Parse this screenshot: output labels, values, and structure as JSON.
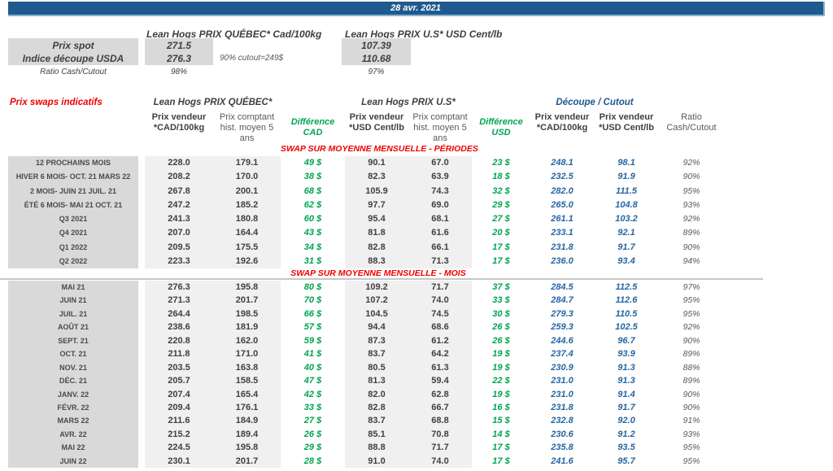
{
  "title_bar": {
    "date": "28 avr. 2021"
  },
  "colors": {
    "header_bar_blue": "#1e5a8d",
    "section_red": "#ee0000",
    "difference_green": "#00a550",
    "cutout_blue": "#2566a2",
    "label_gray_bg": "#d9d9d9",
    "band_gray_bg": "#f0f0f0"
  },
  "spot": {
    "quebec_header": "Lean Hogs PRIX QUÉBEC* Cad/100kg",
    "us_header": "Lean Hogs PRIX U.S* USD Cent/lb",
    "rows": [
      {
        "label": "Prix spot",
        "cad": "271.5",
        "usd": "107.39"
      },
      {
        "label": "Indice découpe USDA",
        "cad": "276.3",
        "usd": "110.68"
      }
    ],
    "cutout_note": "90% cutout=249$",
    "ratio_label": "Ratio Cash/Cutout",
    "ratio_cad": "98%",
    "ratio_usd": "97%"
  },
  "swaps": {
    "title": "Prix swaps indicatifs",
    "quebec_group": "Lean Hogs PRIX QUÉBEC*",
    "us_group": "Lean Hogs PRIX U.S*",
    "cutout_group": "Découpe / Cutout",
    "columns": [
      "",
      "Prix vendeur\n*CAD/100kg",
      "Prix comptant\nhist. moyen 5\nans",
      "Différence\nCAD",
      "Prix vendeur\n*USD Cent/lb",
      "Prix comptant\nhist. moyen 5\nans",
      "Différence\nUSD",
      "Prix vendeur\n*CAD/100kg",
      "Prix vendeur\n*USD Cent/lb",
      "Ratio\nCash/Cutout"
    ],
    "sections": [
      {
        "title": "SWAP SUR MOYENNE MENSUELLE - PÉRIODES",
        "rows": [
          [
            "12 PROCHAINS MOIS",
            "228.0",
            "179.1",
            "49 $",
            "90.1",
            "67.0",
            "23 $",
            "248.1",
            "98.1",
            "92%"
          ],
          [
            "HIVER 6 MOIS- OCT. 21 MARS 22",
            "208.2",
            "170.0",
            "38 $",
            "82.3",
            "63.9",
            "18 $",
            "232.5",
            "91.9",
            "90%"
          ],
          [
            "2 MOIS- JUIN 21 JUIL. 21",
            "267.8",
            "200.1",
            "68 $",
            "105.9",
            "74.3",
            "32 $",
            "282.0",
            "111.5",
            "95%"
          ],
          [
            "ÉTÉ 6 MOIS- MAI 21 OCT. 21",
            "247.2",
            "185.2",
            "62 $",
            "97.7",
            "69.0",
            "29 $",
            "265.0",
            "104.8",
            "93%"
          ],
          [
            "Q3 2021",
            "241.3",
            "180.8",
            "60 $",
            "95.4",
            "68.1",
            "27 $",
            "261.1",
            "103.2",
            "92%"
          ],
          [
            "Q4 2021",
            "207.0",
            "164.4",
            "43 $",
            "81.8",
            "61.6",
            "20 $",
            "233.1",
            "92.1",
            "89%"
          ],
          [
            "Q1 2022",
            "209.5",
            "175.5",
            "34 $",
            "82.8",
            "66.1",
            "17 $",
            "231.8",
            "91.7",
            "90%"
          ],
          [
            "Q2 2022",
            "223.3",
            "192.6",
            "31 $",
            "88.3",
            "71.3",
            "17 $",
            "236.0",
            "93.4",
            "94%"
          ]
        ]
      },
      {
        "title": "SWAP SUR MOYENNE MENSUELLE - MOIS",
        "rows": [
          [
            "MAI 21",
            "276.3",
            "195.8",
            "80 $",
            "109.2",
            "71.7",
            "37 $",
            "284.5",
            "112.5",
            "97%"
          ],
          [
            "JUIN 21",
            "271.3",
            "201.7",
            "70 $",
            "107.2",
            "74.0",
            "33 $",
            "284.7",
            "112.6",
            "95%"
          ],
          [
            "JUIL. 21",
            "264.4",
            "198.5",
            "66 $",
            "104.5",
            "74.5",
            "30 $",
            "279.3",
            "110.5",
            "95%"
          ],
          [
            "AOÛT 21",
            "238.6",
            "181.9",
            "57 $",
            "94.4",
            "68.6",
            "26 $",
            "259.3",
            "102.5",
            "92%"
          ],
          [
            "SEPT. 21",
            "220.8",
            "162.0",
            "59 $",
            "87.3",
            "61.2",
            "26 $",
            "244.6",
            "96.7",
            "90%"
          ],
          [
            "OCT. 21",
            "211.8",
            "171.0",
            "41 $",
            "83.7",
            "64.2",
            "19 $",
            "237.4",
            "93.9",
            "89%"
          ],
          [
            "NOV. 21",
            "203.5",
            "163.8",
            "40 $",
            "80.5",
            "61.3",
            "19 $",
            "230.9",
            "91.3",
            "88%"
          ],
          [
            "DÉC. 21",
            "205.7",
            "158.5",
            "47 $",
            "81.3",
            "59.4",
            "22 $",
            "231.0",
            "91.3",
            "89%"
          ],
          [
            "JANV. 22",
            "207.4",
            "165.4",
            "42 $",
            "82.0",
            "62.8",
            "19 $",
            "231.0",
            "91.4",
            "90%"
          ],
          [
            "FÉVR. 22",
            "209.4",
            "176.1",
            "33 $",
            "82.8",
            "66.7",
            "16 $",
            "231.8",
            "91.7",
            "90%"
          ],
          [
            "MARS 22",
            "211.6",
            "184.9",
            "27 $",
            "83.7",
            "68.8",
            "15 $",
            "232.8",
            "92.0",
            "91%"
          ],
          [
            "AVR. 22",
            "215.2",
            "189.4",
            "26 $",
            "85.1",
            "70.8",
            "14 $",
            "230.6",
            "91.2",
            "93%"
          ],
          [
            "MAI 22",
            "224.5",
            "195.8",
            "29 $",
            "88.8",
            "71.7",
            "17 $",
            "235.8",
            "93.5",
            "95%"
          ],
          [
            "JUIN 22",
            "230.1",
            "201.7",
            "28 $",
            "91.0",
            "74.0",
            "17 $",
            "241.6",
            "95.7",
            "95%"
          ]
        ]
      }
    ]
  }
}
